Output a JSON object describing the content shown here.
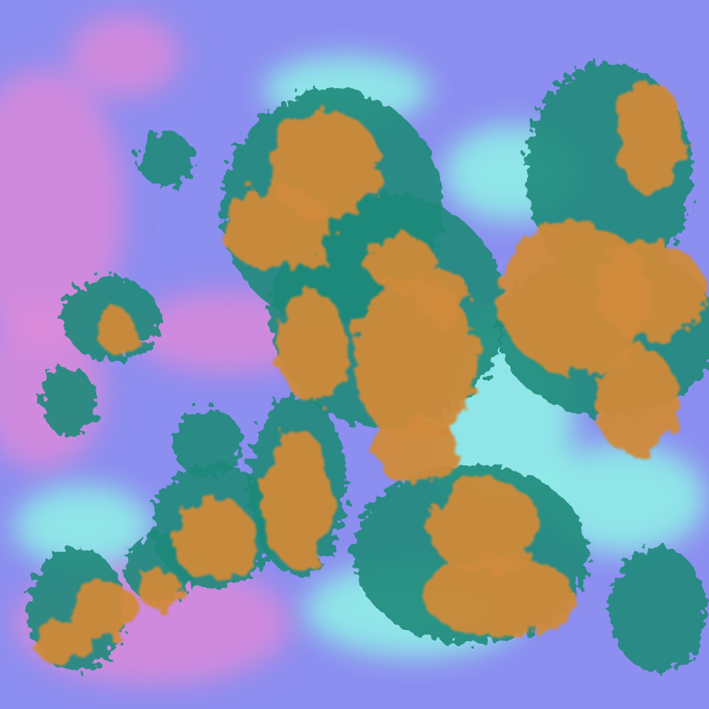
{
  "image": {
    "kind": "false-color satellite cloud imagery",
    "colors": {
      "background_blue": "#8c8ef0",
      "pink_haze": "#e08ad8",
      "cyan_cloud": "#8ff5e6",
      "orange_cloud": "#d08a3a",
      "teal_edge": "#1f8a7a",
      "dark_edge": "#1a3a6a"
    }
  }
}
